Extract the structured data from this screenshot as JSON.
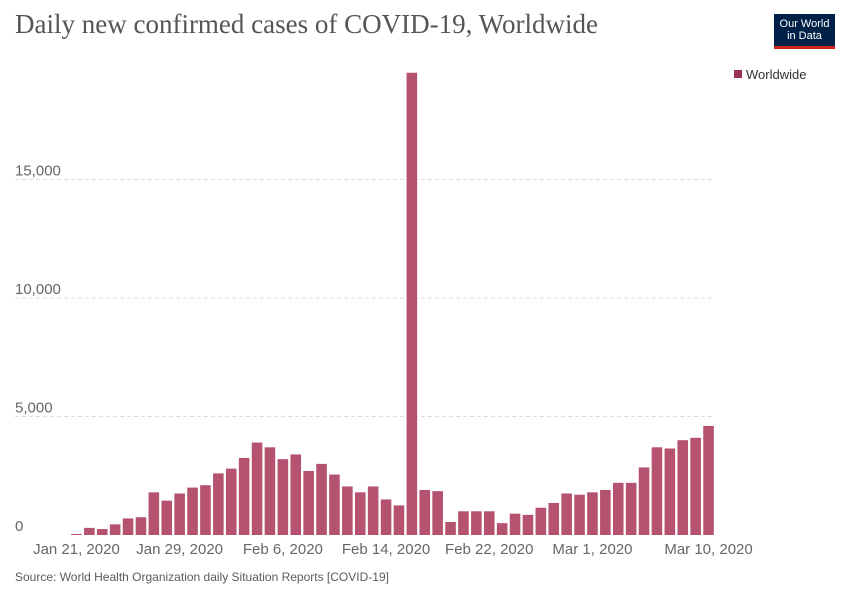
{
  "header": {
    "title": "Daily new confirmed cases of COVID-19, Worldwide",
    "logo_line1": "Our World",
    "logo_line2": "in Data"
  },
  "footer": {
    "source": "Source: World Health Organization daily Situation Reports [COVID-19]"
  },
  "colors": {
    "bar": "#b5526f",
    "legend_marker": "#9b2f4f",
    "grid": "#dddddd",
    "logo_bg": "#002147",
    "logo_accent": "#ce261e"
  },
  "chart_data": {
    "type": "bar",
    "title": "Daily new confirmed cases of COVID-19, Worldwide",
    "ylim": [
      0,
      19700
    ],
    "yticks": [
      0,
      5000,
      10000,
      15000
    ],
    "ytick_labels": [
      "0",
      "5,000",
      "10,000",
      "15,000"
    ],
    "grid": "horizontal dashed",
    "legend_position": "top-right",
    "xtick_labels": [
      {
        "category": "2020-01-21",
        "label": "Jan 21, 2020"
      },
      {
        "category": "2020-01-29",
        "label": "Jan 29, 2020"
      },
      {
        "category": "2020-02-06",
        "label": "Feb 6, 2020"
      },
      {
        "category": "2020-02-14",
        "label": "Feb 14, 2020"
      },
      {
        "category": "2020-02-22",
        "label": "Feb 22, 2020"
      },
      {
        "category": "2020-03-01",
        "label": "Mar 1, 2020"
      },
      {
        "category": "2020-03-10",
        "label": "Mar 10, 2020"
      }
    ],
    "categories": [
      "2020-01-21",
      "2020-01-22",
      "2020-01-23",
      "2020-01-24",
      "2020-01-25",
      "2020-01-26",
      "2020-01-27",
      "2020-01-28",
      "2020-01-29",
      "2020-01-30",
      "2020-01-31",
      "2020-02-01",
      "2020-02-02",
      "2020-02-03",
      "2020-02-04",
      "2020-02-05",
      "2020-02-06",
      "2020-02-07",
      "2020-02-08",
      "2020-02-09",
      "2020-02-10",
      "2020-02-11",
      "2020-02-12",
      "2020-02-13",
      "2020-02-14",
      "2020-02-15",
      "2020-02-16",
      "2020-02-17",
      "2020-02-18",
      "2020-02-19",
      "2020-02-20",
      "2020-02-21",
      "2020-02-22",
      "2020-02-23",
      "2020-02-24",
      "2020-02-25",
      "2020-02-26",
      "2020-02-27",
      "2020-02-28",
      "2020-02-29",
      "2020-03-01",
      "2020-03-02",
      "2020-03-03",
      "2020-03-04",
      "2020-03-05",
      "2020-03-06",
      "2020-03-07",
      "2020-03-08",
      "2020-03-09",
      "2020-03-10"
    ],
    "series": [
      {
        "name": "Worldwide",
        "values": [
          0,
          300,
          250,
          450,
          700,
          750,
          1800,
          1450,
          1750,
          2000,
          2100,
          2600,
          2800,
          3250,
          3900,
          3700,
          3200,
          3400,
          2700,
          3000,
          2550,
          2050,
          1800,
          2050,
          1500,
          1250,
          19500,
          1900,
          1850,
          550,
          1000,
          1000,
          1000,
          500,
          900,
          850,
          1150,
          1350,
          1750,
          1700,
          1800,
          1900,
          2200,
          2200,
          2850,
          3700,
          3650,
          4000,
          4100,
          4600
        ]
      }
    ]
  }
}
